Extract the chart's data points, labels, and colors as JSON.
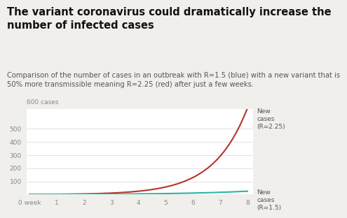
{
  "title": "The variant coronavirus could dramatically increase the\nnumber of infected cases",
  "subtitle": "Comparison of the number of cases in an outbreak with R=1.5 (blue) with a new variant that is\n50% more transmissible meaning R=2.25 (red) after just a few weeks.",
  "title_fontsize": 10.5,
  "subtitle_fontsize": 7.2,
  "R_low": 1.5,
  "R_high": 2.25,
  "start_cases": 1,
  "color_red": "#b5342a",
  "color_blue": "#2ab5a5",
  "background_color": "#f0efeb",
  "plot_background": "#ffffff",
  "ytick_labels": [
    "",
    "100",
    "200",
    "300",
    "400",
    "500"
  ],
  "yticks": [
    0,
    100,
    200,
    300,
    400,
    500
  ],
  "ylim": [
    0,
    650
  ],
  "xlim": [
    -0.1,
    8.2
  ],
  "xtick_labels": [
    "0 week",
    "1",
    "2",
    "3",
    "4",
    "5",
    "6",
    "7",
    "8"
  ],
  "label_red": "New\ncases\n(R=2.25)",
  "label_blue": "New\ncases\n(R=1.5)",
  "top_label": "600 cases",
  "grid_color": "#dddddd",
  "tick_color": "#888888",
  "title_color": "#111111",
  "subtitle_color": "#555555",
  "annotation_color": "#555555"
}
